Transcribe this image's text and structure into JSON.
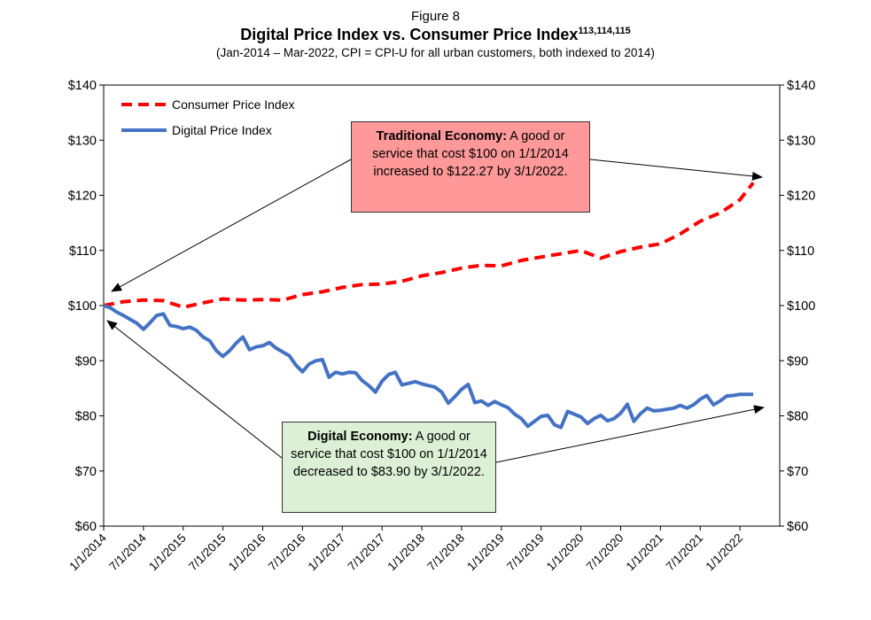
{
  "figure_label": "Figure 8",
  "title_main": "Digital Price Index vs. Consumer Price Index",
  "title_sup": "113,114,115",
  "subtitle": "(Jan-2014 – Mar-2022, CPI = CPI-U for all urban customers, both indexed to 2014)",
  "legend": {
    "cpi": "Consumer Price Index",
    "dpi": "Digital Price Index"
  },
  "callouts": {
    "traditional": {
      "heading": "Traditional Economy:",
      "text": " A good or service that cost $100 on 1/1/2014 increased to $122.27 by 3/1/2022."
    },
    "digital": {
      "heading": "Digital Economy:",
      "text": " A good or service that cost $100 on 1/1/2014 decreased to $83.90 by 3/1/2022."
    }
  },
  "colors": {
    "cpi": "#ff0000",
    "dpi": "#4472c4",
    "traditional_box": "#ff9999",
    "digital_box": "#dcf0d6"
  },
  "chart_data": {
    "type": "line",
    "title": "Digital Price Index vs. Consumer Price Index",
    "subtitle": "(Jan-2014 – Mar-2022, CPI = CPI-U for all urban customers, both indexed to 2014)",
    "xlabel": "",
    "ylabel": "",
    "ylim": [
      60,
      140
    ],
    "y_ticks": [
      "$60",
      "$70",
      "$80",
      "$90",
      "$100",
      "$110",
      "$120",
      "$130",
      "$140"
    ],
    "y_tick_values": [
      60,
      70,
      80,
      90,
      100,
      110,
      120,
      130,
      140
    ],
    "secondary_y_axis": true,
    "x_tick_labels": [
      "1/1/2014",
      "7/1/2014",
      "1/1/2015",
      "7/1/2015",
      "1/1/2016",
      "7/1/2016",
      "1/1/2017",
      "7/1/2017",
      "1/1/2018",
      "7/1/2018",
      "1/1/2019",
      "7/1/2019",
      "1/1/2020",
      "7/1/2020",
      "1/1/2021",
      "7/1/2021",
      "1/1/2022"
    ],
    "x_start": "2014-01",
    "x_end": "2022-03",
    "grid": false,
    "legend_position": "top-left",
    "series": [
      {
        "name": "Consumer Price Index",
        "style": "dashed",
        "x": [
          "2014-01",
          "2014-04",
          "2014-07",
          "2014-10",
          "2015-01",
          "2015-04",
          "2015-07",
          "2015-10",
          "2016-01",
          "2016-04",
          "2016-07",
          "2016-10",
          "2017-01",
          "2017-04",
          "2017-07",
          "2017-10",
          "2018-01",
          "2018-04",
          "2018-07",
          "2018-10",
          "2019-01",
          "2019-04",
          "2019-07",
          "2019-10",
          "2020-01",
          "2020-04",
          "2020-07",
          "2020-10",
          "2021-01",
          "2021-04",
          "2021-07",
          "2021-10",
          "2022-01",
          "2022-03"
        ],
        "values": [
          100,
          100.7,
          101.0,
          100.9,
          99.7,
          100.5,
          101.2,
          101.0,
          101.1,
          101.0,
          102.0,
          102.5,
          103.3,
          103.8,
          103.9,
          104.4,
          105.4,
          106.0,
          106.8,
          107.3,
          107.2,
          108.2,
          108.8,
          109.4,
          110.0,
          108.6,
          109.8,
          110.6,
          111.2,
          113.0,
          115.3,
          116.8,
          119.2,
          122.27
        ]
      },
      {
        "name": "Digital Price Index",
        "style": "solid",
        "x": [
          "2014-01",
          "2014-02",
          "2014-03",
          "2014-04",
          "2014-05",
          "2014-06",
          "2014-07",
          "2014-08",
          "2014-09",
          "2014-10",
          "2014-11",
          "2014-12",
          "2015-01",
          "2015-02",
          "2015-03",
          "2015-04",
          "2015-05",
          "2015-06",
          "2015-07",
          "2015-08",
          "2015-09",
          "2015-10",
          "2015-11",
          "2015-12",
          "2016-01",
          "2016-02",
          "2016-03",
          "2016-04",
          "2016-05",
          "2016-06",
          "2016-07",
          "2016-08",
          "2016-09",
          "2016-10",
          "2016-11",
          "2016-12",
          "2017-01",
          "2017-02",
          "2017-03",
          "2017-04",
          "2017-05",
          "2017-06",
          "2017-07",
          "2017-08",
          "2017-09",
          "2017-10",
          "2017-11",
          "2017-12",
          "2018-01",
          "2018-02",
          "2018-03",
          "2018-04",
          "2018-05",
          "2018-06",
          "2018-07",
          "2018-08",
          "2018-09",
          "2018-10",
          "2018-11",
          "2018-12",
          "2019-01",
          "2019-02",
          "2019-03",
          "2019-04",
          "2019-05",
          "2019-06",
          "2019-07",
          "2019-08",
          "2019-09",
          "2019-10",
          "2019-11",
          "2019-12",
          "2020-01",
          "2020-02",
          "2020-03",
          "2020-04",
          "2020-05",
          "2020-06",
          "2020-07",
          "2020-08",
          "2020-09",
          "2020-10",
          "2020-11",
          "2020-12",
          "2021-01",
          "2021-02",
          "2021-03",
          "2021-04",
          "2021-05",
          "2021-06",
          "2021-07",
          "2021-08",
          "2021-09",
          "2021-10",
          "2021-11",
          "2021-12",
          "2022-01",
          "2022-02",
          "2022-03"
        ],
        "values": [
          100,
          99.6,
          98.8,
          98.2,
          97.5,
          96.8,
          95.7,
          96.9,
          98.2,
          98.5,
          96.4,
          96.2,
          95.8,
          96.1,
          95.5,
          94.3,
          93.6,
          91.8,
          90.8,
          91.8,
          93.2,
          94.3,
          92.0,
          92.5,
          92.7,
          93.3,
          92.3,
          91.6,
          90.9,
          89.2,
          88.0,
          89.4,
          90.0,
          90.2,
          87.0,
          87.9,
          87.6,
          87.9,
          87.8,
          86.4,
          85.5,
          84.3,
          86.3,
          87.5,
          87.9,
          85.6,
          85.9,
          86.2,
          85.8,
          85.5,
          85.2,
          84.3,
          82.3,
          83.5,
          84.8,
          85.7,
          82.4,
          82.7,
          81.9,
          82.6,
          82.0,
          81.5,
          80.3,
          79.5,
          78.1,
          79.0,
          79.9,
          80.1,
          78.4,
          77.9,
          80.8,
          80.3,
          79.8,
          78.6,
          79.5,
          80.1,
          79.1,
          79.5,
          80.5,
          82.1,
          79.0,
          80.4,
          81.4,
          80.9,
          81.0,
          81.2,
          81.4,
          81.9,
          81.4,
          82.0,
          83.0,
          83.7,
          82.0,
          82.7,
          83.6,
          83.7,
          83.9,
          83.9,
          83.9
        ]
      }
    ]
  }
}
